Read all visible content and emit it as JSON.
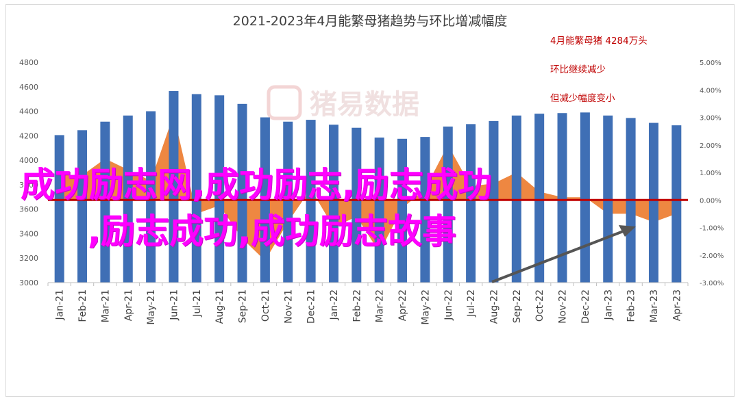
{
  "chart_data": {
    "type": "bar",
    "title": "2021-2023年4月能繁母猪趋势与环比增减幅度",
    "categories": [
      "Jan-21",
      "Feb-21",
      "Mar-21",
      "Apr-21",
      "May-21",
      "Jun-21",
      "Jul-21",
      "Aug-21",
      "Sep-21",
      "Oct-21",
      "Nov-21",
      "Dec-21",
      "Jan-22",
      "Feb-22",
      "Mar-22",
      "Apr-22",
      "May-22",
      "Jun-22",
      "Jul-22",
      "Aug-22",
      "Sep-22",
      "Oct-22",
      "Nov-22",
      "Dec-22",
      "Jan-23",
      "Feb-23",
      "Mar-23",
      "Apr-23"
    ],
    "series": [
      {
        "type": "bar",
        "axis": "left",
        "color": "#3f6fb5",
        "values": [
          4205,
          4245,
          4315,
          4365,
          4400,
          4565,
          4540,
          4530,
          4460,
          4350,
          4315,
          4330,
          4290,
          4265,
          4185,
          4175,
          4190,
          4275,
          4295,
          4320,
          4365,
          4380,
          4385,
          4390,
          4365,
          4345,
          4305,
          4285
        ]
      },
      {
        "type": "area",
        "axis": "right",
        "color": "#ed7d31",
        "values": [
          0.9,
          0.9,
          1.5,
          1.1,
          0.7,
          3.1,
          -0.5,
          -0.2,
          -1.4,
          -2.2,
          -0.8,
          0.4,
          -1.0,
          -0.6,
          -1.9,
          -0.3,
          0.4,
          2.0,
          0.5,
          0.6,
          1.0,
          0.3,
          0.1,
          0.1,
          -0.5,
          -0.5,
          -0.8,
          -0.5
        ]
      }
    ],
    "y_left": {
      "min": 3000,
      "max": 4800,
      "ticks": [
        "3000",
        "3200",
        "3400",
        "3600",
        "3800",
        "4000",
        "4200",
        "4400",
        "4600",
        "4800"
      ]
    },
    "y_right": {
      "min": -3,
      "max": 5,
      "ticks": [
        "-3.00%",
        "-2.00%",
        "-1.00%",
        "0.00%",
        "1.00%",
        "2.00%",
        "3.00%",
        "4.00%",
        "5.00%"
      ]
    },
    "annotations": [
      "4月能繁母猪 4284万头",
      "环比继续减少",
      "但减少幅度变小"
    ],
    "watermark": "猪易数据",
    "grid": false,
    "legend": "none"
  },
  "overlay": {
    "line1": "成功励志网,成功励志,励志成功",
    "line2": ",励志成功,成功励志故事"
  },
  "colors": {
    "bar": "#3f6fb5",
    "area": "#ed7d31",
    "zero_line": "#c00000",
    "annotation": "#c00000",
    "overlay": "#ff00ff",
    "arrow": "#555555"
  }
}
